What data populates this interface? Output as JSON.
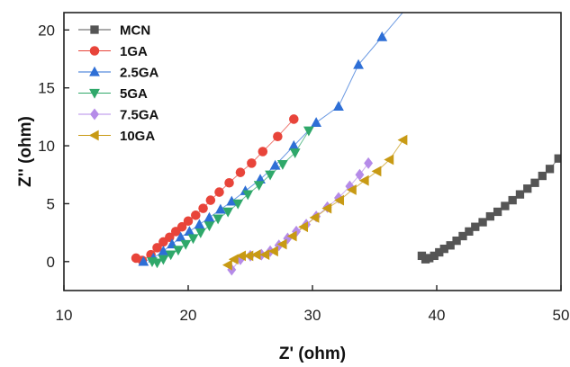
{
  "chart_data": {
    "type": "scatter",
    "xlabel": "Z' (ohm)",
    "ylabel": "Z'' (ohm)",
    "xlim": [
      10,
      50
    ],
    "ylim": [
      -2.5,
      21.5
    ],
    "xticks": [
      10,
      20,
      30,
      40,
      50
    ],
    "yticks": [
      0,
      5,
      10,
      15,
      20
    ],
    "x_tick_labels": [
      "10",
      "20",
      "30",
      "40",
      "50"
    ],
    "y_tick_labels": [
      "0",
      "5",
      "10",
      "15",
      "20"
    ],
    "grid": false,
    "legend_position": "top-left",
    "series": [
      {
        "name": "MCN",
        "color": "#555555",
        "marker": "square",
        "x": [
          38.8,
          39.1,
          39.4,
          39.8,
          40.2,
          40.6,
          41.1,
          41.6,
          42.1,
          42.6,
          43.1,
          43.7,
          44.3,
          44.9,
          45.5,
          46.1,
          46.7,
          47.3,
          47.9,
          48.5,
          49.1,
          49.8
        ],
        "y": [
          0.5,
          0.2,
          0.3,
          0.5,
          0.8,
          1.1,
          1.4,
          1.8,
          2.2,
          2.6,
          3.0,
          3.4,
          3.9,
          4.3,
          4.8,
          5.3,
          5.8,
          6.3,
          6.8,
          7.4,
          8.0,
          8.9
        ]
      },
      {
        "name": "1GA",
        "color": "#e8443a",
        "marker": "circle",
        "x": [
          15.8,
          16.3,
          17.0,
          17.5,
          18.0,
          18.5,
          19.0,
          19.5,
          20.0,
          20.6,
          21.2,
          21.8,
          22.5,
          23.3,
          24.2,
          25.1,
          26.0,
          27.2,
          28.5
        ],
        "y": [
          0.3,
          0.1,
          0.6,
          1.2,
          1.7,
          2.1,
          2.6,
          3.0,
          3.5,
          4.0,
          4.6,
          5.3,
          6.0,
          6.8,
          7.7,
          8.5,
          9.5,
          10.8,
          12.3
        ]
      },
      {
        "name": "2.5GA",
        "color": "#2e6fd6",
        "marker": "triangle-up",
        "x": [
          16.4,
          17.2,
          18.0,
          18.7,
          19.4,
          20.1,
          20.9,
          21.7,
          22.6,
          23.5,
          24.6,
          25.8,
          27.0,
          28.5,
          30.3,
          32.1,
          33.7,
          35.6
        ],
        "y": [
          0.0,
          0.3,
          0.9,
          1.5,
          2.1,
          2.6,
          3.2,
          3.8,
          4.5,
          5.2,
          6.1,
          7.1,
          8.3,
          10.0,
          12.0,
          13.4,
          17.0,
          19.4
        ]
      },
      {
        "name": "5GA",
        "color": "#2fa86a",
        "marker": "triangle-down",
        "x": [
          17.1,
          17.5,
          18.0,
          18.6,
          19.2,
          19.8,
          20.4,
          21.0,
          21.7,
          22.4,
          23.2,
          24.0,
          24.8,
          25.7,
          26.6,
          27.6,
          28.6,
          29.7
        ],
        "y": [
          0.0,
          -0.1,
          0.2,
          0.6,
          1.0,
          1.5,
          2.0,
          2.5,
          3.1,
          3.7,
          4.3,
          5.0,
          5.8,
          6.6,
          7.5,
          8.4,
          9.4,
          11.3
        ]
      },
      {
        "name": "7.5GA",
        "color": "#b58be8",
        "marker": "diamond",
        "x": [
          23.5,
          24.2,
          25.0,
          25.9,
          26.6,
          27.3,
          28.0,
          28.7,
          29.5,
          30.3,
          31.2,
          32.1,
          33.0,
          33.8,
          34.5
        ],
        "y": [
          -0.7,
          0.2,
          0.5,
          0.6,
          0.9,
          1.4,
          2.0,
          2.6,
          3.2,
          3.9,
          4.7,
          5.5,
          6.5,
          7.5,
          8.5
        ]
      },
      {
        "name": "10GA",
        "color": "#c89a14",
        "marker": "triangle-left",
        "x": [
          23.2,
          23.7,
          24.3,
          24.9,
          25.5,
          26.2,
          26.9,
          27.6,
          28.4,
          29.3,
          30.2,
          31.2,
          32.2,
          33.2,
          34.2,
          35.2,
          36.2,
          37.3
        ],
        "y": [
          -0.3,
          0.2,
          0.5,
          0.5,
          0.6,
          0.6,
          0.9,
          1.5,
          2.2,
          3.0,
          3.8,
          4.6,
          5.3,
          6.2,
          7.0,
          7.8,
          8.8,
          10.5
        ]
      }
    ]
  }
}
